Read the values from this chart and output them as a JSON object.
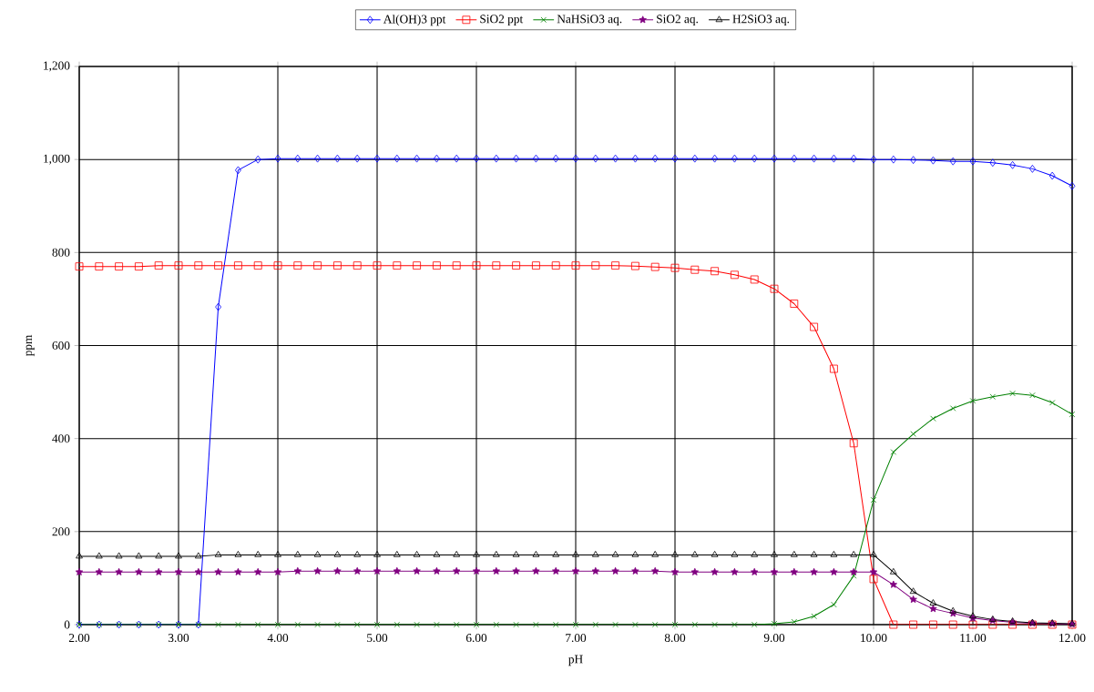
{
  "chart_data": {
    "type": "line",
    "xlabel": "pH",
    "ylabel": "ppm",
    "x": [
      2.0,
      2.2,
      2.4,
      2.6,
      2.8,
      3.0,
      3.2,
      3.4,
      3.6,
      3.8,
      4.0,
      4.2,
      4.4,
      4.6,
      4.8,
      5.0,
      5.2,
      5.4,
      5.6,
      5.8,
      6.0,
      6.2,
      6.4,
      6.6,
      6.8,
      7.0,
      7.2,
      7.4,
      7.6,
      7.8,
      8.0,
      8.2,
      8.4,
      8.6,
      8.8,
      9.0,
      9.2,
      9.4,
      9.6,
      9.8,
      10.0,
      10.2,
      10.4,
      10.6,
      10.8,
      11.0,
      11.2,
      11.4,
      11.6,
      11.8,
      12.0
    ],
    "series": [
      {
        "name": "Al(OH)3 ppt",
        "color": "#0000ff",
        "marker": "diamond",
        "values": [
          0,
          0,
          0,
          0,
          0,
          0,
          0,
          683,
          977,
          1000,
          1002,
          1002,
          1002,
          1002,
          1002,
          1002,
          1002,
          1002,
          1002,
          1002,
          1002,
          1002,
          1002,
          1002,
          1002,
          1002,
          1002,
          1002,
          1002,
          1002,
          1002,
          1002,
          1002,
          1002,
          1002,
          1002,
          1002,
          1002,
          1002,
          1002,
          1000,
          1000,
          999,
          998,
          996,
          996,
          993,
          988,
          980,
          965,
          943
        ]
      },
      {
        "name": "SiO2 ppt",
        "color": "#ff0000",
        "marker": "square",
        "values": [
          770,
          770,
          770,
          770,
          772,
          772,
          772,
          772,
          772,
          772,
          772,
          772,
          772,
          772,
          772,
          772,
          772,
          772,
          772,
          772,
          772,
          772,
          772,
          772,
          772,
          772,
          772,
          772,
          771,
          769,
          767,
          763,
          760,
          752,
          742,
          722,
          690,
          640,
          550,
          390,
          98,
          0,
          0,
          0,
          0,
          0,
          0,
          0,
          0,
          0,
          0
        ]
      },
      {
        "name": "NaHSiO3 aq.",
        "color": "#008000",
        "marker": "cross",
        "values": [
          0,
          0,
          0,
          0,
          0,
          0,
          0,
          0,
          0,
          0,
          0,
          0,
          0,
          0,
          0,
          0,
          0,
          0,
          0,
          0,
          0,
          0,
          0,
          0,
          0,
          0,
          0,
          0,
          0,
          0,
          0,
          0,
          0,
          0,
          0,
          2,
          6,
          18,
          43,
          105,
          268,
          371,
          410,
          443,
          465,
          481,
          490,
          497,
          493,
          477,
          452
        ]
      },
      {
        "name": "SiO2 aq.",
        "color": "#800080",
        "marker": "star",
        "values": [
          113,
          113,
          113,
          113,
          113,
          113,
          113,
          113,
          113,
          113,
          113,
          115,
          115,
          115,
          115,
          115,
          115,
          115,
          115,
          115,
          115,
          115,
          115,
          115,
          115,
          115,
          115,
          115,
          115,
          115,
          113,
          113,
          113,
          113,
          113,
          113,
          113,
          113,
          113,
          113,
          113,
          86,
          54,
          34,
          24,
          14,
          9,
          5,
          3,
          2,
          1
        ]
      },
      {
        "name": "H2SiO3 aq.",
        "color": "#000000",
        "marker": "triangle",
        "values": [
          147,
          147,
          147,
          147,
          147,
          147,
          147,
          150,
          150,
          150,
          150,
          150,
          150,
          150,
          150,
          150,
          150,
          150,
          150,
          150,
          150,
          150,
          150,
          150,
          150,
          150,
          150,
          150,
          150,
          150,
          150,
          150,
          150,
          150,
          150,
          150,
          150,
          150,
          150,
          150,
          150,
          113,
          71,
          46,
          29,
          18,
          11,
          7,
          4,
          3,
          2
        ]
      }
    ],
    "xlim": [
      2,
      12
    ],
    "xticks": [
      {
        "value": 2,
        "label": "2.00"
      },
      {
        "value": 3,
        "label": "3.00"
      },
      {
        "value": 4,
        "label": "4.00"
      },
      {
        "value": 5,
        "label": "5.00"
      },
      {
        "value": 6,
        "label": "6.00"
      },
      {
        "value": 7,
        "label": "7.00"
      },
      {
        "value": 8,
        "label": "8.00"
      },
      {
        "value": 9,
        "label": "9.00"
      },
      {
        "value": 10,
        "label": "10.00"
      },
      {
        "value": 11,
        "label": "11.00"
      },
      {
        "value": 12,
        "label": "12.00"
      }
    ],
    "ylim": [
      0,
      1200
    ],
    "yticks": [
      0,
      200,
      400,
      600,
      800,
      {
        "value": 1000,
        "label": "1,000"
      },
      {
        "value": 1200,
        "label": "1,200"
      }
    ],
    "grid": true,
    "legend": "top",
    "line_style": "solid"
  }
}
